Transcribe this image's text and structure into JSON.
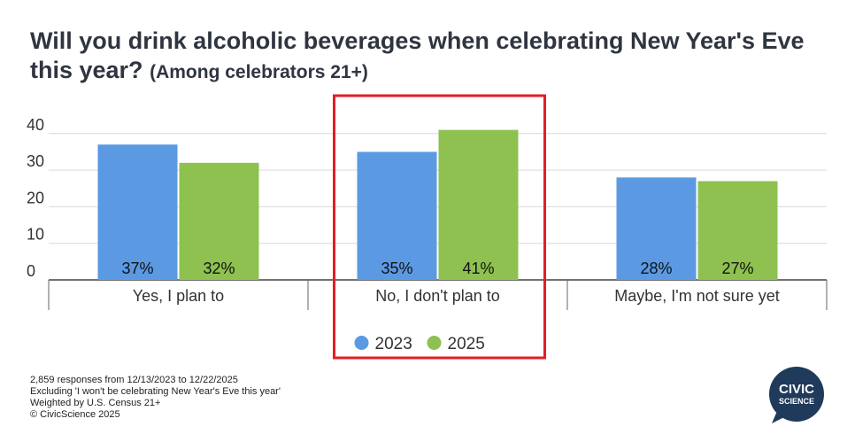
{
  "title": "Will you drink alcoholic beverages when celebrating New Year's Eve this year?",
  "subtitle": "(Among celebrators 21+)",
  "chart_data": {
    "type": "bar",
    "categories": [
      "Yes, I plan to",
      "No, I don't plan to",
      "Maybe, I'm not sure yet"
    ],
    "series": [
      {
        "name": "2023",
        "values": [
          37,
          35,
          28
        ],
        "labels": [
          "37%",
          "35%",
          "28%"
        ],
        "color": "#5b9ae3"
      },
      {
        "name": "2025",
        "values": [
          32,
          41,
          27
        ],
        "labels": [
          "32%",
          "41%",
          "27%"
        ],
        "color": "#8ec150"
      }
    ],
    "yticks": [
      0,
      10,
      20,
      30,
      40
    ],
    "ylim": [
      0,
      45
    ],
    "grid": true,
    "legend": "bottom",
    "highlighted_category": "No, I don't plan to",
    "highlight_color": "#e31e24"
  },
  "footnotes": [
    "2,859 responses from 12/13/2023 to 12/22/2025",
    "Excluding 'I won't be celebrating New Year's Eve this year'",
    "Weighted by U.S. Census 21+",
    "© CivicScience 2025"
  ],
  "logo": {
    "line1": "CIVIC",
    "line2": "SCIENCE",
    "color": "#1f3a5a"
  }
}
